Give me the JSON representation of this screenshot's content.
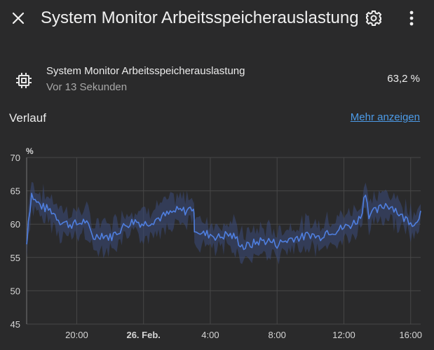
{
  "header": {
    "title": "System Monitor Arbeitsspeicherauslastung",
    "close_icon": "close-icon",
    "settings_icon": "gear-icon",
    "menu_icon": "more-vert-icon"
  },
  "entity": {
    "icon": "chip-icon",
    "name": "System Monitor Arbeitsspeicherauslastung",
    "last_updated": "Vor 13 Sekunden",
    "state": "63,2 %"
  },
  "history": {
    "title": "Verlauf",
    "more_link": "Mehr anzeigen"
  },
  "colors": {
    "line": "#4f7fe0",
    "band": "#3b4a74",
    "grid": "#474747",
    "axis_text": "#d6d6d6"
  },
  "chart_data": {
    "type": "line",
    "unit": "%",
    "ylim": [
      45,
      70
    ],
    "y_ticks": [
      45,
      50,
      55,
      60,
      65,
      70
    ],
    "x_range_hours": [
      17,
      40.6
    ],
    "x_ticks": [
      {
        "hour": 20,
        "label": "20:00",
        "bold": false
      },
      {
        "hour": 24,
        "label": "26. Feb.",
        "bold": true
      },
      {
        "hour": 28,
        "label": "4:00",
        "bold": false
      },
      {
        "hour": 32,
        "label": "8:00",
        "bold": false
      },
      {
        "hour": 36,
        "label": "12:00",
        "bold": false
      },
      {
        "hour": 40,
        "label": "16:00",
        "bold": false
      }
    ],
    "grid": true,
    "series": [
      {
        "x": [
          17.0,
          17.1,
          17.3,
          17.5,
          18.0,
          18.5,
          19.0,
          19.5,
          20.0,
          20.5,
          20.8,
          21.0,
          21.5,
          22.0,
          22.5,
          23.0,
          23.5,
          24.0,
          24.5,
          25.0,
          25.5,
          26.0,
          26.5,
          27.0,
          27.05,
          27.5,
          28.0,
          28.5,
          29.0,
          29.5,
          30.0,
          30.5,
          31.0,
          31.5,
          32.0,
          32.5,
          33.0,
          33.5,
          34.0,
          34.5,
          35.0,
          35.5,
          36.0,
          36.5,
          37.0,
          37.3,
          37.5,
          38.0,
          38.5,
          39.0,
          39.5,
          40.0,
          40.3,
          40.6
        ],
        "y": [
          57.0,
          60.5,
          64.5,
          63.5,
          62.5,
          62.0,
          60.5,
          60.0,
          60.0,
          60.5,
          59.0,
          58.0,
          58.5,
          58.0,
          59.0,
          60.0,
          60.5,
          60.0,
          60.5,
          61.0,
          61.5,
          62.0,
          62.0,
          62.5,
          59.5,
          58.5,
          58.5,
          58.0,
          58.5,
          58.0,
          56.5,
          57.0,
          57.5,
          57.5,
          57.0,
          57.5,
          58.0,
          58.0,
          58.5,
          58.0,
          59.0,
          59.0,
          59.5,
          60.0,
          61.0,
          65.0,
          61.5,
          62.0,
          63.0,
          62.5,
          61.0,
          60.5,
          60.0,
          62.0
        ]
      }
    ]
  }
}
